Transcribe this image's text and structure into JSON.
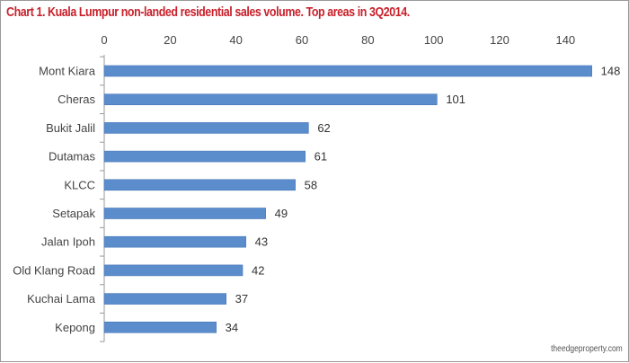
{
  "title": "Chart 1. Kuala Lumpur non-landed residential sales volume. Top areas in 3Q2014.",
  "credit": "theedgeproperty.com",
  "colors": {
    "bar": "#5b8ccc",
    "bar_edge": "#4a78b8",
    "title": "#c8202a",
    "axis": "#999999"
  },
  "chart_data": {
    "type": "bar",
    "orientation": "horizontal",
    "title": "Chart 1. Kuala Lumpur non-landed residential sales volume. Top areas in 3Q2014.",
    "xlabel": "",
    "ylabel": "",
    "categories": [
      "Mont Kiara",
      "Cheras",
      "Bukit Jalil",
      "Dutamas",
      "KLCC",
      "Setapak",
      "Jalan Ipoh",
      "Old Klang Road",
      "Kuchai Lama",
      "Kepong"
    ],
    "values": [
      148,
      101,
      62,
      61,
      58,
      49,
      43,
      42,
      37,
      34
    ],
    "value_axis": {
      "min": 0,
      "max": 150,
      "ticks": [
        0,
        20,
        40,
        60,
        80,
        100,
        120,
        140
      ],
      "position": "top"
    },
    "grid": false,
    "legend": "none",
    "data_labels": true
  }
}
